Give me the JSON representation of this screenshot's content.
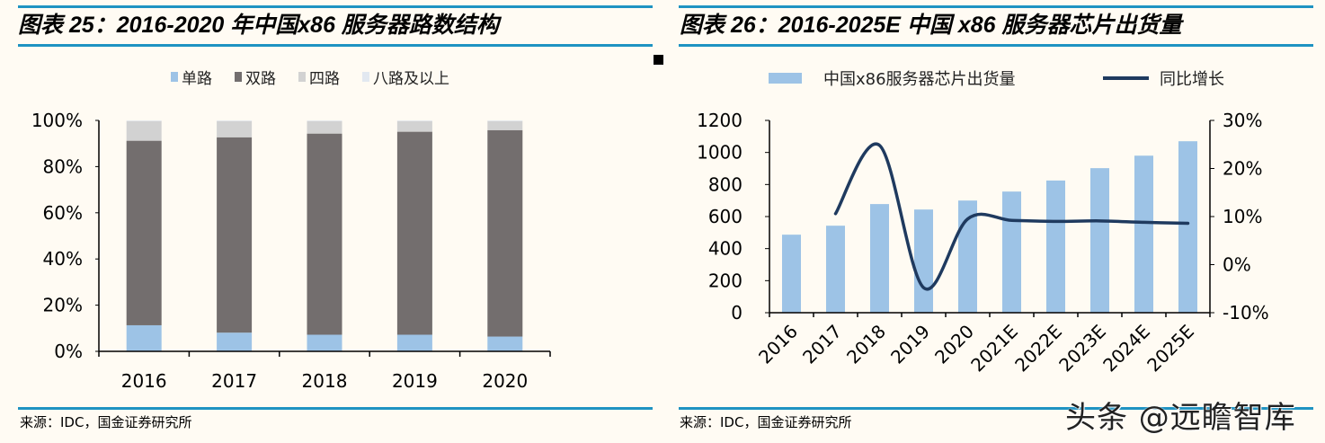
{
  "left": {
    "title": "图表 25：2016-2020 年中国x86 服务器路数结构",
    "source": "来源：IDC，国金证券研究所"
  },
  "right": {
    "title": "图表 26：2016-2025E 中国 x86 服务器芯片出货量",
    "source": "来源：IDC，国金证券研究所"
  },
  "watermark": "头条 @远瞻智库",
  "chart_data": [
    {
      "type": "bar",
      "stacked": true,
      "title": "",
      "categories": [
        "2016",
        "2017",
        "2018",
        "2019",
        "2020"
      ],
      "ylim": [
        0,
        100
      ],
      "yticks": [
        "0%",
        "20%",
        "40%",
        "60%",
        "80%",
        "100%"
      ],
      "legend_position": "top",
      "grid": false,
      "series": [
        {
          "name": "单路",
          "color": "#9dc3e6",
          "values": [
            11.3,
            8.1,
            7.2,
            7.2,
            6.4
          ]
        },
        {
          "name": "双路",
          "color": "#736e6e",
          "values": [
            79.9,
            84.6,
            87.1,
            87.9,
            89.4
          ]
        },
        {
          "name": "四路",
          "color": "#d2d2d2",
          "values": [
            8.5,
            7.0,
            5.4,
            4.6,
            3.9
          ]
        },
        {
          "name": "八路及以上",
          "color": "#e2e8f0",
          "values": [
            0.3,
            0.3,
            0.3,
            0.3,
            0.3
          ]
        }
      ]
    },
    {
      "type": "bar+line",
      "title": "",
      "categories": [
        "2016",
        "2017",
        "2018",
        "2019",
        "2020",
        "2021E",
        "2022E",
        "2023E",
        "2024E",
        "2025E"
      ],
      "ylim": [
        0,
        1200
      ],
      "yticks": [
        "0",
        "200",
        "400",
        "600",
        "800",
        "1000",
        "1200"
      ],
      "y2lim": [
        -10,
        30
      ],
      "y2ticks": [
        "-10%",
        "0%",
        "10%",
        "20%",
        "30%"
      ],
      "legend_position": "top",
      "grid": false,
      "series": [
        {
          "name": "中国x86服务器芯片出货量",
          "type": "bar",
          "axis": "left",
          "color": "#9dc3e6",
          "values": [
            487,
            543,
            678,
            644,
            700,
            756,
            825,
            902,
            980,
            1070
          ]
        },
        {
          "name": "同比增长",
          "type": "line",
          "axis": "right",
          "color": "#1f3a5f",
          "values": [
            null,
            10.6,
            24.8,
            -4.8,
            9.5,
            9.2,
            9.0,
            9.1,
            8.8,
            8.6
          ]
        }
      ]
    }
  ]
}
